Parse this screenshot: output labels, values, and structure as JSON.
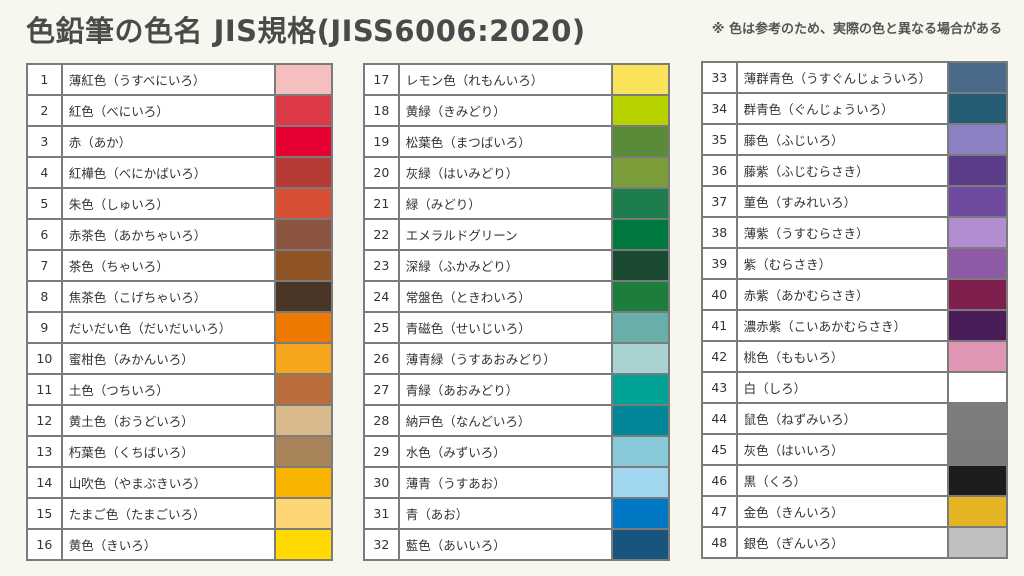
{
  "title": "色鉛筆の色名 JIS規格(JISS6006:2020)",
  "note": "※ 色は参考のため、実際の色と異なる場合がある",
  "columns": [
    [
      {
        "num": "1",
        "name": "薄紅色（うすべにいろ）",
        "color": "#f5bfbf"
      },
      {
        "num": "2",
        "name": "紅色（べにいろ）",
        "color": "#dd3a48"
      },
      {
        "num": "3",
        "name": "赤（あか）",
        "color": "#e60033"
      },
      {
        "num": "4",
        "name": "紅樺色（べにかばいろ）",
        "color": "#b53b35"
      },
      {
        "num": "5",
        "name": "朱色（しゅいろ）",
        "color": "#d94f33"
      },
      {
        "num": "6",
        "name": "赤茶色（あかちゃいろ）",
        "color": "#8b5541"
      },
      {
        "num": "7",
        "name": "茶色（ちゃいろ）",
        "color": "#8f5425"
      },
      {
        "num": "8",
        "name": "焦茶色（こげちゃいろ）",
        "color": "#4a3626"
      },
      {
        "num": "9",
        "name": "だいだい色（だいだいいろ）",
        "color": "#ee7900"
      },
      {
        "num": "10",
        "name": "蜜柑色（みかんいろ）",
        "color": "#f5a61d"
      },
      {
        "num": "11",
        "name": "土色（つちいろ）",
        "color": "#b86d3a"
      },
      {
        "num": "12",
        "name": "黄土色（おうどいろ）",
        "color": "#d8b98b"
      },
      {
        "num": "13",
        "name": "朽葉色（くちばいろ）",
        "color": "#a88258"
      },
      {
        "num": "14",
        "name": "山吹色（やまぶきいろ）",
        "color": "#f8b500"
      },
      {
        "num": "15",
        "name": "たまご色（たまごいろ）",
        "color": "#fcd575"
      },
      {
        "num": "16",
        "name": "黄色（きいろ）",
        "color": "#ffd900"
      }
    ],
    [
      {
        "num": "17",
        "name": "レモン色（れもんいろ）",
        "color": "#fae35a"
      },
      {
        "num": "18",
        "name": "黄緑（きみどり）",
        "color": "#b8d200"
      },
      {
        "num": "19",
        "name": "松葉色（まつばいろ）",
        "color": "#5b8a39"
      },
      {
        "num": "20",
        "name": "灰緑（はいみどり）",
        "color": "#7a9d3a"
      },
      {
        "num": "21",
        "name": "緑（みどり）",
        "color": "#1e7d4d"
      },
      {
        "num": "22",
        "name": "エメラルドグリーン",
        "color": "#00793f"
      },
      {
        "num": "23",
        "name": "深緑（ふかみどり）",
        "color": "#1b4a33"
      },
      {
        "num": "24",
        "name": "常盤色（ときわいろ）",
        "color": "#1d7d3c"
      },
      {
        "num": "25",
        "name": "青磁色（せいじいろ）",
        "color": "#6aaea9"
      },
      {
        "num": "26",
        "name": "薄青緑（うすあおみどり）",
        "color": "#a8d3d2"
      },
      {
        "num": "27",
        "name": "青緑（あおみどり）",
        "color": "#00a395"
      },
      {
        "num": "28",
        "name": "納戸色（なんどいろ）",
        "color": "#008899"
      },
      {
        "num": "29",
        "name": "水色（みずいろ）",
        "color": "#88c8d8"
      },
      {
        "num": "30",
        "name": "薄青（うすあお）",
        "color": "#a0d6ee"
      },
      {
        "num": "31",
        "name": "青（あお）",
        "color": "#0078c3"
      },
      {
        "num": "32",
        "name": "藍色（あいいろ）",
        "color": "#17557e"
      }
    ],
    [
      {
        "num": "33",
        "name": "薄群青色（うすぐんじょういろ）",
        "color": "#4a6a8a"
      },
      {
        "num": "34",
        "name": "群青色（ぐんじょういろ）",
        "color": "#245d74"
      },
      {
        "num": "35",
        "name": "藤色（ふじいろ）",
        "color": "#8c7fc2"
      },
      {
        "num": "36",
        "name": "藤紫（ふじむらさき）",
        "color": "#5b3c88"
      },
      {
        "num": "37",
        "name": "菫色（すみれいろ）",
        "color": "#6e4aa0"
      },
      {
        "num": "38",
        "name": "薄紫（うすむらさき）",
        "color": "#b08ed0"
      },
      {
        "num": "39",
        "name": "紫（むらさき）",
        "color": "#8e5aa6"
      },
      {
        "num": "40",
        "name": "赤紫（あかむらさき）",
        "color": "#7e1f4e"
      },
      {
        "num": "41",
        "name": "濃赤紫（こいあかむらさき）",
        "color": "#4a1d5a"
      },
      {
        "num": "42",
        "name": "桃色（ももいろ）",
        "color": "#e095b5"
      },
      {
        "num": "43",
        "name": "白（しろ）",
        "color": "#ffffff"
      },
      {
        "num": "44",
        "name": "鼠色（ねずみいろ）",
        "color": "#7d7d7d"
      },
      {
        "num": "45",
        "name": "灰色（はいいろ）",
        "color": "#7b7b7b"
      },
      {
        "num": "46",
        "name": "黒（くろ）",
        "color": "#1c1c1c"
      },
      {
        "num": "47",
        "name": "金色（きんいろ）",
        "color": "#e6b422"
      },
      {
        "num": "48",
        "name": "銀色（ぎんいろ）",
        "color": "#c0c0c0"
      }
    ]
  ]
}
